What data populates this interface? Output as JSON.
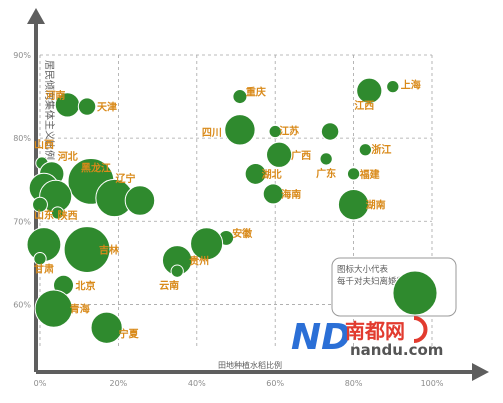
{
  "colors": {
    "bubble": "#2f8a2e",
    "bubble_edge": "#ffffff",
    "label": "#d98a1a",
    "axis": "#5e5e5e",
    "grid": "#a5a5a5",
    "tick": "#8c8c8c",
    "legend_border": "#9a9a9a",
    "logo_blue": "#2b6fd6",
    "logo_red": "#e23b2f",
    "logo_text": "#555555"
  },
  "watermark": {
    "logo_text": "ND",
    "brand_cn": "南都网",
    "brand_url": "nandu.com"
  },
  "chart_data": {
    "type": "scatter",
    "title": "",
    "xlabel": "田地种植水稻比例",
    "ylabel": "居民倾向集体主义比例",
    "xlim": [
      0,
      100
    ],
    "ylim": [
      55,
      90
    ],
    "x_ticks": [
      "0%",
      "20%",
      "40%",
      "60%",
      "80%",
      "100%"
    ],
    "y_ticks": [
      "60%",
      "70%",
      "80%",
      "90%"
    ],
    "x_tick_values": [
      0,
      20,
      40,
      60,
      80,
      100
    ],
    "y_tick_values": [
      60,
      70,
      80,
      90
    ],
    "grid": true,
    "legend": {
      "position": "bottom-right",
      "lines": [
        "图标大小代表",
        "每千对夫妇离婚数"
      ],
      "bubble_size": 4.2
    },
    "points": [
      {
        "name": "河南",
        "x": 7,
        "y": 84,
        "size": 1.9
      },
      {
        "name": "天津",
        "x": 12,
        "y": 83.8,
        "size": 1.1
      },
      {
        "name": "重庆",
        "x": 51,
        "y": 85,
        "size": 0.7
      },
      {
        "name": "江西",
        "x": 84,
        "y": 85.7,
        "size": 2.0
      },
      {
        "name": "上海",
        "x": 90,
        "y": 86.2,
        "size": 0.5
      },
      {
        "name": "四川",
        "x": 51,
        "y": 81,
        "size": 2.6
      },
      {
        "name": "江苏",
        "x": 60,
        "y": 80.8,
        "size": 0.5
      },
      {
        "name": "",
        "x": 74,
        "y": 80.8,
        "size": 1.1
      },
      {
        "name": "山西",
        "x": 0.5,
        "y": 77,
        "size": 0.5
      },
      {
        "name": "广西",
        "x": 61,
        "y": 78,
        "size": 2.0
      },
      {
        "name": "浙江",
        "x": 83,
        "y": 78.6,
        "size": 0.5
      },
      {
        "name": "广东",
        "x": 73,
        "y": 77.5,
        "size": 0.5
      },
      {
        "name": "河北",
        "x": 3,
        "y": 75.7,
        "size": 1.9
      },
      {
        "name": "黑龙江",
        "x": 13,
        "y": 74.8,
        "size": 4.4
      },
      {
        "name": "湖北",
        "x": 55,
        "y": 75.7,
        "size": 1.5
      },
      {
        "name": "福建",
        "x": 80,
        "y": 75.7,
        "size": 0.5
      },
      {
        "name": "",
        "x": 1,
        "y": 74,
        "size": 2.5
      },
      {
        "name": "辽宁",
        "x": 19,
        "y": 72.8,
        "size": 3.4
      },
      {
        "name": "",
        "x": 25.5,
        "y": 72.5,
        "size": 2.5
      },
      {
        "name": "",
        "x": 4,
        "y": 73,
        "size": 2.8
      },
      {
        "name": "海南",
        "x": 59.5,
        "y": 73.3,
        "size": 1.4
      },
      {
        "name": "湖南",
        "x": 80,
        "y": 72,
        "size": 2.6
      },
      {
        "name": "陕西",
        "x": 4.5,
        "y": 71,
        "size": 0.5
      },
      {
        "name": "山东",
        "x": 0,
        "y": 72,
        "size": 0.8
      },
      {
        "name": "安徽",
        "x": 47.5,
        "y": 68,
        "size": 0.8
      },
      {
        "name": "",
        "x": 1,
        "y": 67.2,
        "size": 3.0
      },
      {
        "name": "吉林",
        "x": 12,
        "y": 66.6,
        "size": 4.4
      },
      {
        "name": "",
        "x": 42.5,
        "y": 67.3,
        "size": 2.8
      },
      {
        "name": "甘肃",
        "x": 0,
        "y": 65.5,
        "size": 0.5
      },
      {
        "name": "贵州",
        "x": 35,
        "y": 65.3,
        "size": 2.5
      },
      {
        "name": "云南",
        "x": 35,
        "y": 64,
        "size": 0.5
      },
      {
        "name": "北京",
        "x": 6,
        "y": 62.3,
        "size": 1.4
      },
      {
        "name": "青海",
        "x": 3.5,
        "y": 59.5,
        "size": 3.4
      },
      {
        "name": "宁夏",
        "x": 17,
        "y": 57.2,
        "size": 2.7
      }
    ]
  }
}
